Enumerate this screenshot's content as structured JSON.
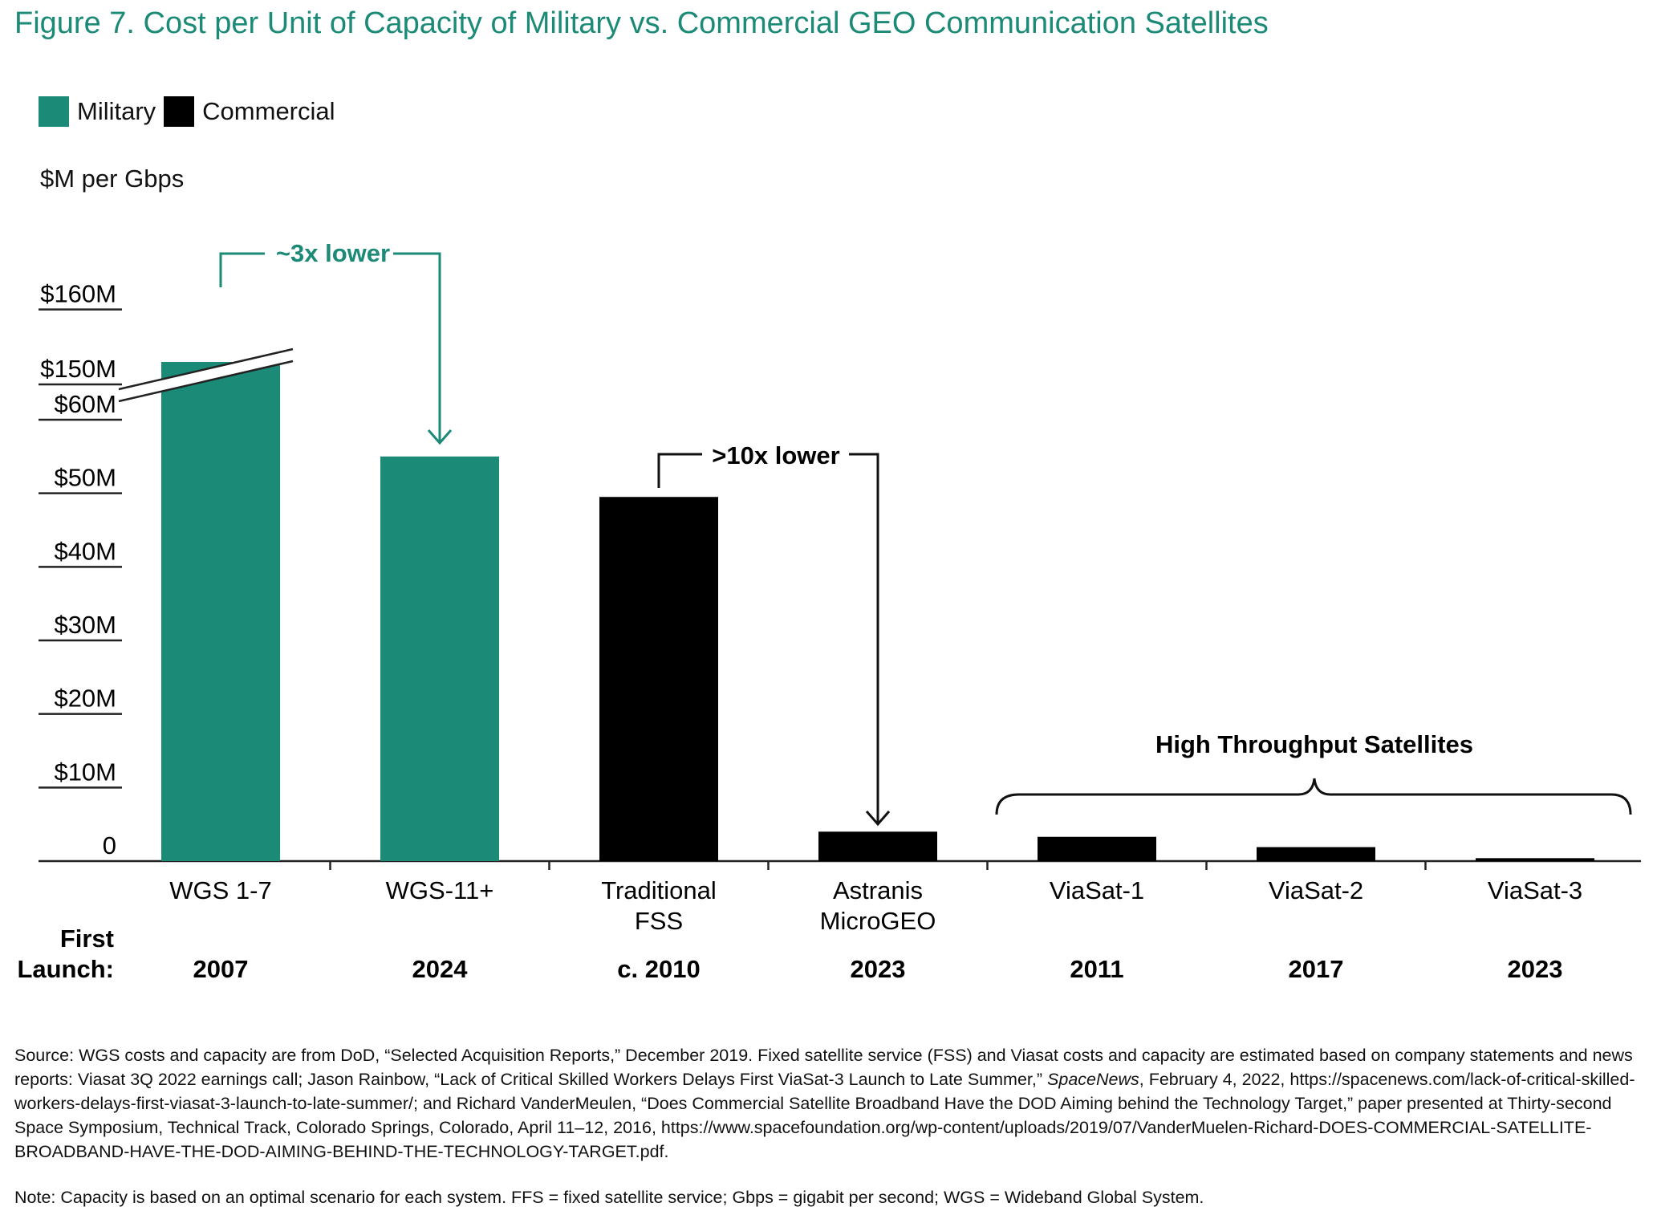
{
  "title": "Figure 7. Cost per Unit of Capacity of Military vs. Commercial GEO Communication Satellites",
  "colors": {
    "military": "#1b8a76",
    "commercial": "#000000"
  },
  "legend": [
    {
      "label": "Military",
      "color": "#1b8a76"
    },
    {
      "label": "Commercial",
      "color": "#000000"
    }
  ],
  "first_launch_label": [
    "First",
    "Launch:"
  ],
  "annotations": {
    "military_compare": "~3x lower",
    "commercial_compare": ">10x lower",
    "hts_bracket": "High Throughput Satellites"
  },
  "chart_data": {
    "type": "bar",
    "ylabel": "$M per Gbps",
    "y_axis_break": [
      60,
      150
    ],
    "ylim": [
      0,
      160
    ],
    "yticks": [
      {
        "value": 0,
        "label": "0"
      },
      {
        "value": 10,
        "label": "$10M"
      },
      {
        "value": 20,
        "label": "$20M"
      },
      {
        "value": 30,
        "label": "$30M"
      },
      {
        "value": 40,
        "label": "$40M"
      },
      {
        "value": 50,
        "label": "$50M"
      },
      {
        "value": 60,
        "label": "$60M"
      },
      {
        "value": 150,
        "label": "$150M"
      },
      {
        "value": 160,
        "label": "$160M"
      }
    ],
    "bars": [
      {
        "label": [
          "WGS 1-7"
        ],
        "launch": "2007",
        "value": 153,
        "group": "Military"
      },
      {
        "label": [
          "WGS-11+"
        ],
        "launch": "2024",
        "value": 55,
        "group": "Military"
      },
      {
        "label": [
          "Traditional",
          "FSS"
        ],
        "launch": "c. 2010",
        "value": 49.5,
        "group": "Commercial"
      },
      {
        "label": [
          "Astranis",
          "MicroGEO"
        ],
        "launch": "2023",
        "value": 4,
        "group": "Commercial"
      },
      {
        "label": [
          "ViaSat-1"
        ],
        "launch": "2011",
        "value": 3.3,
        "group": "Commercial"
      },
      {
        "label": [
          "ViaSat-2"
        ],
        "launch": "2017",
        "value": 1.9,
        "group": "Commercial"
      },
      {
        "label": [
          "ViaSat-3"
        ],
        "launch": "2023",
        "value": 0.4,
        "group": "Commercial"
      }
    ]
  },
  "source_note": {
    "prefix": "Source: WGS costs and capacity are from DoD, “Selected Acquisition Reports,” December 2019. Fixed satellite service (FSS) and Viasat costs and capacity are estimated based on company statements and news reports: Viasat 3Q 2022 earnings call; Jason Rainbow, “Lack of Critical Skilled Workers Delays First ViaSat-3 Launch to Late Summer,” ",
    "publication": "SpaceNews",
    "suffix": ", February 4, 2022, https://spacenews.com/lack-of-critical-skilled-workers-delays-first-viasat-3-launch-to-late-summer/; and Richard VanderMeulen, “Does Commercial Satellite Broadband Have the DOD Aiming behind the Technology Target,” paper presented at Thirty-second Space Symposium, Technical Track, Colorado Springs, Colorado, April 11–12, 2016, https://www.spacefoundation.org/wp-content/uploads/2019/07/VanderMuelen-Richard-DOES-COMMERCIAL-SATELLITE-BROADBAND-HAVE-THE-DOD-AIMING-BEHIND-THE-TECHNOLOGY-TARGET.pdf."
  },
  "note": "Note: Capacity is based on an optimal scenario for each system. FFS = fixed satellite service; Gbps = gigabit per second; WGS = Wideband Global System."
}
